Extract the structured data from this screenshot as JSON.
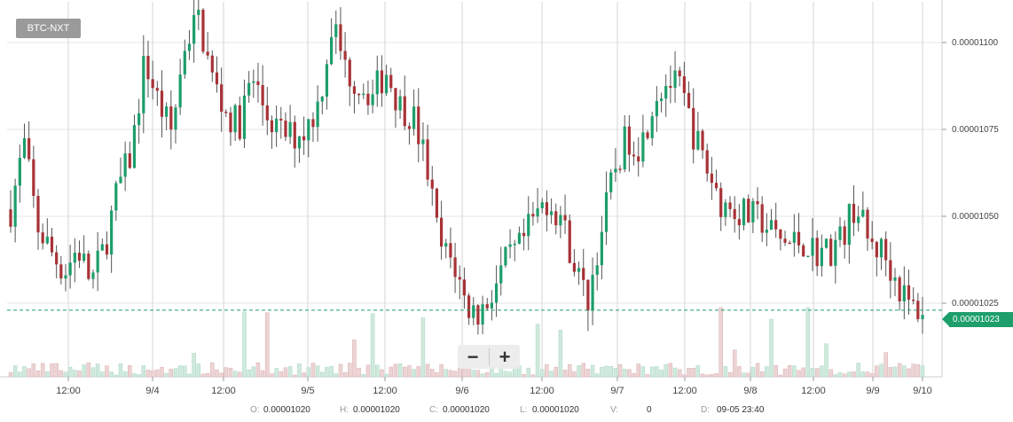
{
  "pair": {
    "label": "BTC-NXT"
  },
  "zoom": {
    "out_label": "−",
    "in_label": "+"
  },
  "current_price": {
    "label": "0.00001023",
    "value": 1.023e-05
  },
  "ohlc": {
    "o_label": "O:",
    "o_value": "0.00001020",
    "h_label": "H:",
    "h_value": "0.00001020",
    "c_label": "C:",
    "c_value": "0.00001020",
    "l_label": "L:",
    "l_value": "0.00001020",
    "v_label": "V:",
    "v_value": "0",
    "d_label": "D:",
    "d_value": "09-05 23:40"
  },
  "colors": {
    "up": "#1d9e6b",
    "down": "#a83236",
    "up_vol": "#cfe9dd",
    "down_vol": "#ecd3d4",
    "grid": "#e6e6e6",
    "vgrid": "#d6d6d6"
  },
  "chart_data": {
    "type": "candlestick",
    "title": "BTC-NXT",
    "price_axis": {
      "side": "right",
      "ticks": [
        "0.00001100",
        "0.00001075",
        "0.00001050",
        "0.00001025"
      ],
      "range": [
        1e-05,
        1.11e-05
      ]
    },
    "time_axis": {
      "ticks": [
        "12:00",
        "9/4",
        "12:00",
        "9/5",
        "12:00",
        "9/6",
        "12:00",
        "9/7",
        "12:00",
        "9/8",
        "12:00",
        "9/9",
        "9/10"
      ]
    },
    "grid": true,
    "approximate_closes": [
      1.052e-05,
      1.071e-05,
      1.047e-05,
      1.04e-05,
      1.034e-05,
      1.041e-05,
      1.031e-05,
      1.041e-05,
      1.058e-05,
      1.068e-05,
      1.095e-05,
      1.083e-05,
      1.074e-05,
      1.1e-05,
      1.107e-05,
      1.09e-05,
      1.08e-05,
      1.076e-05,
      1.09e-05,
      1.08e-05,
      1.074e-05,
      1.073e-05,
      1.075e-05,
      1.083e-05,
      1.106e-05,
      1.092e-05,
      1.088e-05,
      1.085e-05,
      1.092e-05,
      1.082e-05,
      1.079e-05,
      1.065e-05,
      1.041e-05,
      1.037e-05,
      1.024e-05,
      1.022e-05,
      1.029e-05,
      1.037e-05,
      1.041e-05,
      1.049e-05,
      1.055e-05,
      1.05e-05,
      1.037e-05,
      1.025e-05,
      1.045e-05,
      1.063e-05,
      1.073e-05,
      1.07e-05,
      1.085e-05,
      1.089e-05,
      1.086e-05,
      1.073e-05,
      1.063e-05,
      1.054e-05,
      1.052e-05,
      1.05e-05,
      1.049e-05,
      1.044e-05,
      1.042e-05,
      1.043e-05,
      1.04e-05,
      1.04e-05,
      1.044e-05,
      1.054e-05,
      1.042e-05,
      1.04e-05,
      1.032e-05,
      1.024e-05,
      1.023e-05
    ]
  }
}
